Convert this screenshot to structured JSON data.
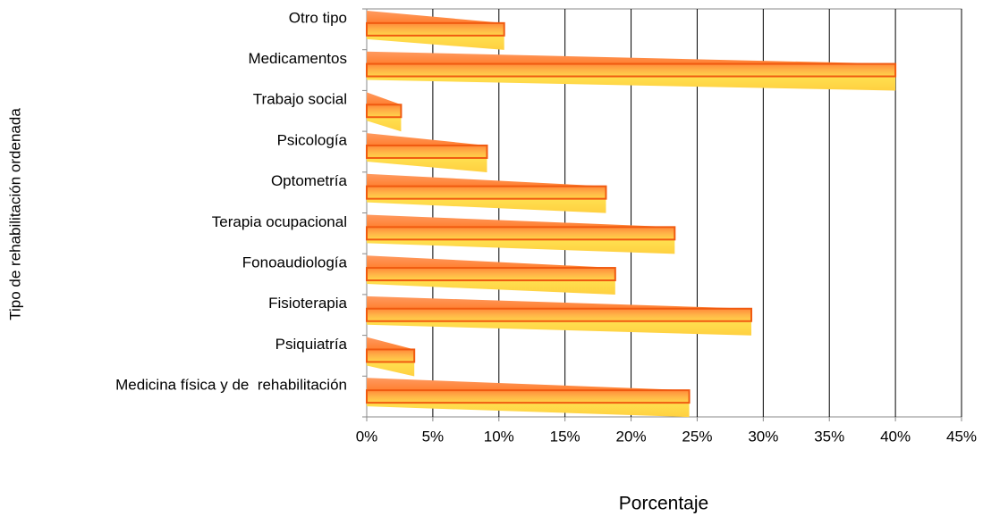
{
  "chart_data": {
    "type": "bar",
    "orientation": "horizontal",
    "xlabel": "Porcentaje",
    "ylabel": "Tipo de rehabilitación ordenada",
    "categories": [
      "Otro tipo",
      "Medicamentos",
      "Trabajo social",
      "Psicología",
      "Optometría",
      "Terapia ocupacional",
      "Fonoaudiología",
      "Fisioterapia",
      "Psiquiatría",
      "Medicina física y de  rehabilitación"
    ],
    "values": [
      10.4,
      40,
      2.6,
      9.1,
      18.1,
      23.3,
      18.8,
      29.1,
      3.6,
      24.4
    ],
    "color": "#ff9933",
    "xlim": [
      0,
      45
    ],
    "xticks": [
      {
        "value": 0,
        "label": "0%"
      },
      {
        "value": 5,
        "label": "5%"
      },
      {
        "value": 10,
        "label": "10%"
      },
      {
        "value": 15,
        "label": "15%"
      },
      {
        "value": 20,
        "label": "20%"
      },
      {
        "value": 25,
        "label": "25%"
      },
      {
        "value": 30,
        "label": "30%"
      },
      {
        "value": 35,
        "label": "35%"
      },
      {
        "value": 40,
        "label": "40%"
      },
      {
        "value": 45,
        "label": "45%"
      }
    ],
    "grid": true
  }
}
